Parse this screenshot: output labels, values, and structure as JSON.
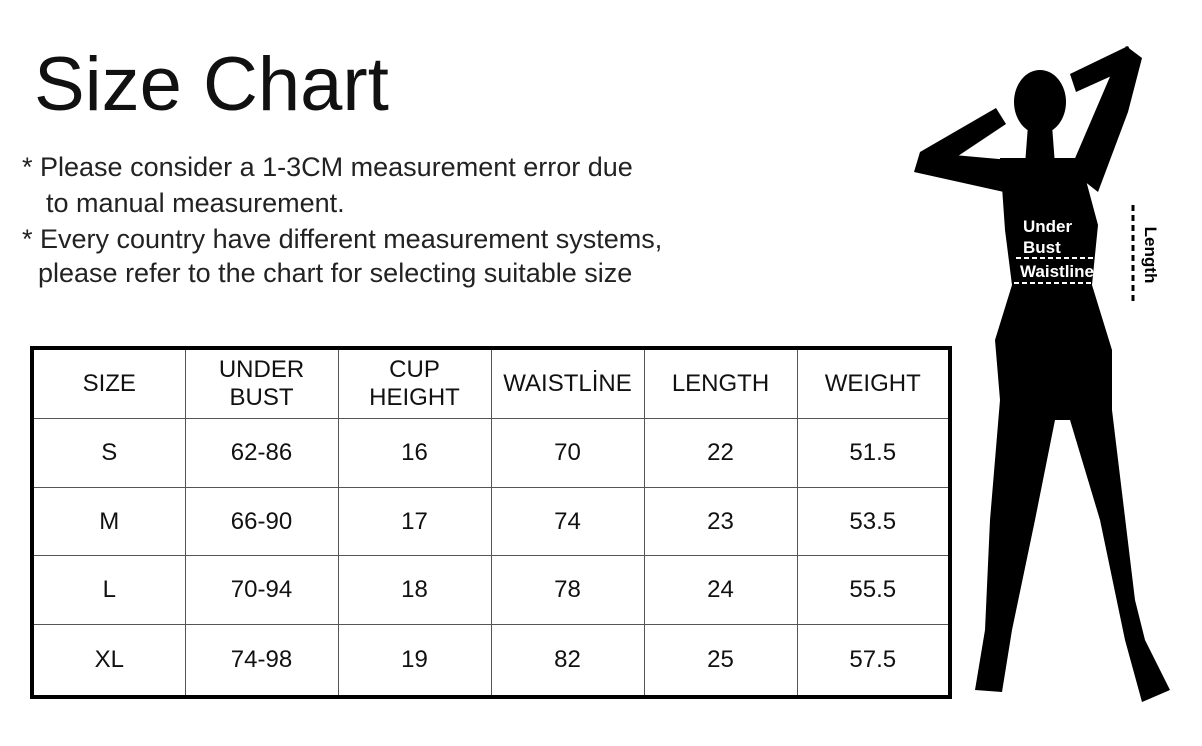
{
  "header": {
    "title": "Size Chart"
  },
  "notes": [
    "* Please consider a 1-3CM measurement error due",
    "to manual measurement.",
    "* Every country have different measurement systems,",
    "please refer to the chart for selecting suitable size"
  ],
  "table": {
    "columns": [
      "SIZE",
      "UNDER BUST",
      "CUP HEIGHT",
      "WAISTLİNE",
      "LENGTH",
      "WEIGHT"
    ],
    "rows": [
      [
        "S",
        "62-86",
        16,
        70,
        22,
        51.5
      ],
      [
        "M",
        "66-90",
        17,
        74,
        23,
        53.5
      ],
      [
        "L",
        "70-94",
        18,
        78,
        24,
        55.5
      ],
      [
        "XL",
        "74-98",
        19,
        82,
        25,
        57.5
      ]
    ]
  },
  "figure": {
    "under_bust": "Under Bust",
    "waistline": "Waistline",
    "length": "Length"
  }
}
